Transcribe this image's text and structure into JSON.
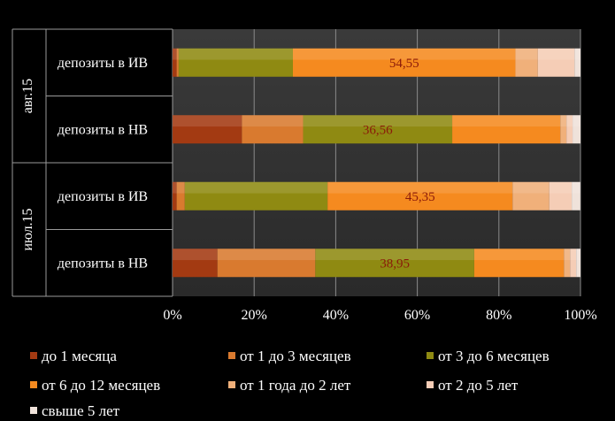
{
  "chart_data": {
    "type": "bar",
    "orientation": "horizontal",
    "stacked": "percent",
    "title": "",
    "xlim": [
      0,
      100
    ],
    "x_ticks": [
      "0%",
      "20%",
      "40%",
      "60%",
      "80%",
      "100%"
    ],
    "grid": true,
    "legend_position": "bottom",
    "groups": [
      {
        "name": "авг.15",
        "rows": [
          "депозиты в ИВ",
          "депозиты в НВ"
        ]
      },
      {
        "name": "июл.15",
        "rows": [
          "депозиты в ИВ",
          "депозиты в НВ"
        ]
      }
    ],
    "series": [
      {
        "name": "до 1 месяца",
        "color": "#a33a12",
        "values": [
          1.0,
          17.0,
          1.0,
          11.0
        ]
      },
      {
        "name": "от 1 до 3 месяцев",
        "color": "#d97a2f",
        "values": [
          0.5,
          15.0,
          2.0,
          24.0
        ]
      },
      {
        "name": "от 3 до 6 месяцев",
        "color": "#8f8a12",
        "values": [
          28.0,
          36.56,
          35.0,
          38.95
        ]
      },
      {
        "name": "от 6 до 12 месяцев",
        "color": "#f58a1f",
        "values": [
          54.55,
          26.5,
          45.35,
          22.0
        ]
      },
      {
        "name": "от 1 года до 2 лет",
        "color": "#f0b07a",
        "values": [
          5.5,
          1.5,
          9.0,
          1.5
        ]
      },
      {
        "name": "от 2 до 5 лет",
        "color": "#f5cdb6",
        "values": [
          9.0,
          1.5,
          5.5,
          1.5
        ]
      },
      {
        "name": "свыше 5 лет",
        "color": "#efe2da",
        "values": [
          1.45,
          1.94,
          2.1,
          1.05
        ]
      }
    ],
    "data_labels": [
      {
        "row": 0,
        "series": 3,
        "text": "54,55"
      },
      {
        "row": 1,
        "series": 2,
        "text": "36,56"
      },
      {
        "row": 2,
        "series": 3,
        "text": "45,35"
      },
      {
        "row": 3,
        "series": 2,
        "text": "38,95"
      }
    ]
  }
}
